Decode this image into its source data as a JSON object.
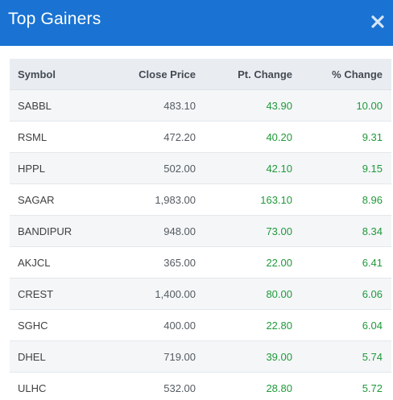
{
  "header": {
    "title": "Top Gainers",
    "close_icon": "close-icon",
    "background_color": "#1a73d2"
  },
  "table": {
    "columns": [
      "Symbol",
      "Close Price",
      "Pt. Change",
      "% Change"
    ],
    "gain_color": "#1f9a3a",
    "rows": [
      {
        "symbol": "SABBL",
        "close": "483.10",
        "pt": "43.90",
        "pct": "10.00"
      },
      {
        "symbol": "RSML",
        "close": "472.20",
        "pt": "40.20",
        "pct": "9.31"
      },
      {
        "symbol": "HPPL",
        "close": "502.00",
        "pt": "42.10",
        "pct": "9.15"
      },
      {
        "symbol": "SAGAR",
        "close": "1,983.00",
        "pt": "163.10",
        "pct": "8.96"
      },
      {
        "symbol": "BANDIPUR",
        "close": "948.00",
        "pt": "73.00",
        "pct": "8.34"
      },
      {
        "symbol": "AKJCL",
        "close": "365.00",
        "pt": "22.00",
        "pct": "6.41"
      },
      {
        "symbol": "CREST",
        "close": "1,400.00",
        "pt": "80.00",
        "pct": "6.06"
      },
      {
        "symbol": "SGHC",
        "close": "400.00",
        "pt": "22.80",
        "pct": "6.04"
      },
      {
        "symbol": "DHEL",
        "close": "719.00",
        "pt": "39.00",
        "pct": "5.74"
      },
      {
        "symbol": "ULHC",
        "close": "532.00",
        "pt": "28.80",
        "pct": "5.72"
      }
    ]
  }
}
